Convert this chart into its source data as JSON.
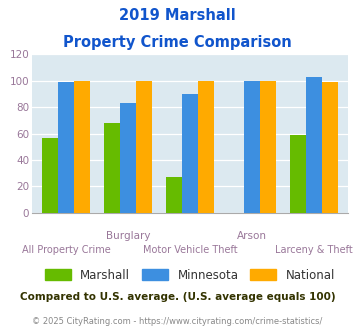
{
  "title_line1": "2019 Marshall",
  "title_line2": "Property Crime Comparison",
  "categories": [
    "All Property Crime",
    "Burglary",
    "Motor Vehicle Theft",
    "Arson",
    "Larceny & Theft"
  ],
  "top_labels": [
    [
      1,
      "Burglary"
    ],
    [
      3,
      "Arson"
    ]
  ],
  "bottom_labels": [
    [
      0,
      "All Property Crime"
    ],
    [
      2,
      "Motor Vehicle Theft"
    ],
    [
      4,
      "Larceny & Theft"
    ]
  ],
  "marshall": [
    57,
    68,
    27,
    0,
    59
  ],
  "minnesota": [
    99,
    83,
    90,
    100,
    103
  ],
  "national": [
    100,
    100,
    100,
    100,
    99
  ],
  "marshall_color": "#66bb00",
  "minnesota_color": "#3d8fe0",
  "national_color": "#ffaa00",
  "background_color": "#dce9f0",
  "ylim": [
    0,
    120
  ],
  "yticks": [
    0,
    20,
    40,
    60,
    80,
    100,
    120
  ],
  "footnote": "Compared to U.S. average. (U.S. average equals 100)",
  "copyright": "© 2025 CityRating.com - https://www.cityrating.com/crime-statistics/",
  "title_color": "#1155cc",
  "footnote_color": "#333300",
  "copyright_color": "#888888",
  "axis_label_color": "#997799",
  "ytick_color": "#997799"
}
